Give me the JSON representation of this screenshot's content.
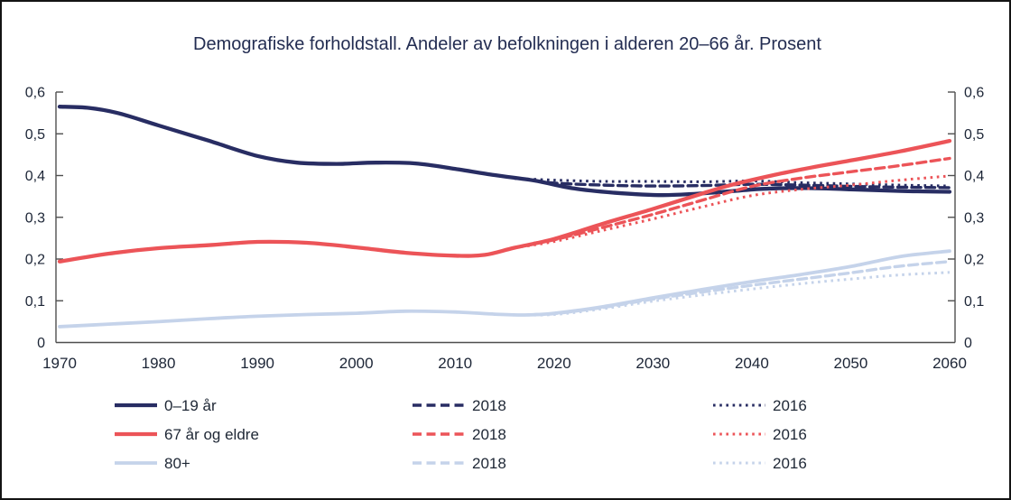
{
  "frame": {
    "background": "#ffffff",
    "border_color": "#141414"
  },
  "chart_data": {
    "type": "line",
    "title": "Demografiske forholdstall. Andeler av befolkningen i alderen 20–66 år. Prosent",
    "xlabel": "",
    "ylabel": "",
    "xlim": [
      1970,
      2060
    ],
    "ylim": [
      0,
      0.6
    ],
    "grid": false,
    "dual_y_axis": true,
    "decimal_separator": ",",
    "x_ticks": [
      1970,
      1980,
      1990,
      2000,
      2010,
      2020,
      2030,
      2040,
      2050,
      2060
    ],
    "y_ticks": [
      {
        "value": 0.0,
        "label": "0"
      },
      {
        "value": 0.1,
        "label": "0,1"
      },
      {
        "value": 0.2,
        "label": "0,2"
      },
      {
        "value": 0.3,
        "label": "0,3"
      },
      {
        "value": 0.4,
        "label": "0,4"
      },
      {
        "value": 0.5,
        "label": "0,5"
      },
      {
        "value": 0.6,
        "label": "0,6"
      }
    ],
    "colors": {
      "navy": "#282d63",
      "red": "#ec5458",
      "lightblue": "#c5d3ea",
      "text": "#1c2536",
      "title_text": "#232d52",
      "axis": "#4f4f4f"
    },
    "legend": {
      "position": "bottom",
      "column_meanings": [
        "solid series",
        "dashed = 2018",
        "dotted = 2016"
      ]
    },
    "series": [
      {
        "name": "2016",
        "dash": "dotted",
        "color": "#c5d3ea",
        "legend_col": 2,
        "legend_row": 2,
        "points": [
          [
            2016,
            0.066
          ],
          [
            2020,
            0.067
          ],
          [
            2025,
            0.081
          ],
          [
            2030,
            0.099
          ],
          [
            2035,
            0.114
          ],
          [
            2040,
            0.128
          ],
          [
            2045,
            0.141
          ],
          [
            2050,
            0.152
          ],
          [
            2055,
            0.162
          ],
          [
            2060,
            0.168
          ]
        ]
      },
      {
        "name": "2018",
        "dash": "dashed",
        "color": "#c5d3ea",
        "legend_col": 1,
        "legend_row": 2,
        "points": [
          [
            2018,
            0.067
          ],
          [
            2020,
            0.069
          ],
          [
            2025,
            0.084
          ],
          [
            2030,
            0.104
          ],
          [
            2035,
            0.121
          ],
          [
            2040,
            0.137
          ],
          [
            2045,
            0.152
          ],
          [
            2050,
            0.167
          ],
          [
            2055,
            0.183
          ],
          [
            2060,
            0.194
          ]
        ]
      },
      {
        "name": "80+",
        "dash": "solid",
        "color": "#c5d3ea",
        "legend_col": 0,
        "legend_row": 2,
        "points": [
          [
            1970,
            0.038
          ],
          [
            1975,
            0.044
          ],
          [
            1980,
            0.05
          ],
          [
            1985,
            0.057
          ],
          [
            1990,
            0.063
          ],
          [
            1995,
            0.067
          ],
          [
            2000,
            0.07
          ],
          [
            2005,
            0.075
          ],
          [
            2010,
            0.073
          ],
          [
            2014,
            0.068
          ],
          [
            2017,
            0.066
          ],
          [
            2020,
            0.07
          ],
          [
            2025,
            0.086
          ],
          [
            2030,
            0.107
          ],
          [
            2035,
            0.127
          ],
          [
            2040,
            0.146
          ],
          [
            2045,
            0.163
          ],
          [
            2050,
            0.182
          ],
          [
            2055,
            0.206
          ],
          [
            2060,
            0.219
          ]
        ]
      },
      {
        "name": "2016",
        "dash": "dotted",
        "color": "#282d63",
        "legend_col": 2,
        "legend_row": 0,
        "points": [
          [
            2016,
            0.393
          ],
          [
            2020,
            0.389
          ],
          [
            2025,
            0.386
          ],
          [
            2030,
            0.386
          ],
          [
            2035,
            0.385
          ],
          [
            2040,
            0.387
          ],
          [
            2045,
            0.383
          ],
          [
            2050,
            0.38
          ],
          [
            2055,
            0.377
          ],
          [
            2060,
            0.375
          ]
        ]
      },
      {
        "name": "2018",
        "dash": "dashed",
        "color": "#282d63",
        "legend_col": 1,
        "legend_row": 0,
        "points": [
          [
            2018,
            0.388
          ],
          [
            2020,
            0.382
          ],
          [
            2025,
            0.377
          ],
          [
            2030,
            0.375
          ],
          [
            2035,
            0.376
          ],
          [
            2040,
            0.379
          ],
          [
            2045,
            0.377
          ],
          [
            2050,
            0.374
          ],
          [
            2055,
            0.372
          ],
          [
            2060,
            0.371
          ]
        ]
      },
      {
        "name": "0–19 år",
        "dash": "solid",
        "color": "#282d63",
        "legend_col": 0,
        "legend_row": 0,
        "points": [
          [
            1970,
            0.565
          ],
          [
            1973,
            0.562
          ],
          [
            1976,
            0.549
          ],
          [
            1980,
            0.52
          ],
          [
            1985,
            0.484
          ],
          [
            1990,
            0.447
          ],
          [
            1994,
            0.431
          ],
          [
            1998,
            0.428
          ],
          [
            2002,
            0.431
          ],
          [
            2006,
            0.429
          ],
          [
            2010,
            0.416
          ],
          [
            2014,
            0.401
          ],
          [
            2018,
            0.388
          ],
          [
            2022,
            0.369
          ],
          [
            2026,
            0.359
          ],
          [
            2031,
            0.353
          ],
          [
            2036,
            0.359
          ],
          [
            2041,
            0.368
          ],
          [
            2045,
            0.37
          ],
          [
            2050,
            0.367
          ],
          [
            2055,
            0.363
          ],
          [
            2060,
            0.361
          ]
        ]
      },
      {
        "name": "2016",
        "dash": "dotted",
        "color": "#ec5458",
        "legend_col": 2,
        "legend_row": 1,
        "points": [
          [
            2016,
            0.227
          ],
          [
            2020,
            0.242
          ],
          [
            2025,
            0.269
          ],
          [
            2030,
            0.296
          ],
          [
            2035,
            0.325
          ],
          [
            2040,
            0.352
          ],
          [
            2045,
            0.367
          ],
          [
            2050,
            0.377
          ],
          [
            2055,
            0.389
          ],
          [
            2060,
            0.399
          ]
        ]
      },
      {
        "name": "2018",
        "dash": "dashed",
        "color": "#ec5458",
        "legend_col": 1,
        "legend_row": 1,
        "points": [
          [
            2018,
            0.238
          ],
          [
            2020,
            0.246
          ],
          [
            2025,
            0.276
          ],
          [
            2030,
            0.307
          ],
          [
            2035,
            0.341
          ],
          [
            2040,
            0.374
          ],
          [
            2045,
            0.394
          ],
          [
            2050,
            0.409
          ],
          [
            2055,
            0.424
          ],
          [
            2060,
            0.441
          ]
        ]
      },
      {
        "name": "67 år og eldre",
        "dash": "solid",
        "color": "#ec5458",
        "legend_col": 0,
        "legend_row": 1,
        "points": [
          [
            1970,
            0.194
          ],
          [
            1975,
            0.213
          ],
          [
            1980,
            0.226
          ],
          [
            1985,
            0.233
          ],
          [
            1990,
            0.241
          ],
          [
            1995,
            0.239
          ],
          [
            2000,
            0.228
          ],
          [
            2005,
            0.215
          ],
          [
            2010,
            0.208
          ],
          [
            2013,
            0.21
          ],
          [
            2016,
            0.227
          ],
          [
            2020,
            0.248
          ],
          [
            2025,
            0.285
          ],
          [
            2030,
            0.32
          ],
          [
            2035,
            0.357
          ],
          [
            2038,
            0.378
          ],
          [
            2042,
            0.4
          ],
          [
            2046,
            0.419
          ],
          [
            2050,
            0.436
          ],
          [
            2055,
            0.458
          ],
          [
            2060,
            0.483
          ]
        ]
      }
    ]
  }
}
